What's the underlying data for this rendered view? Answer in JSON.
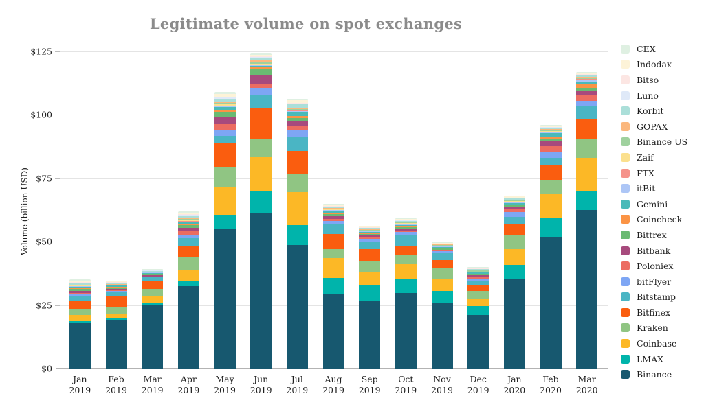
{
  "title": "Legitimate volume on spot exchanges",
  "y_axis": {
    "label": "Volume (billion USD)"
  },
  "chart_data": {
    "type": "bar",
    "stacked": true,
    "title": "Legitimate volume on spot exchanges",
    "xlabel": "",
    "ylabel": "Volume (billion USD)",
    "ylim": [
      0,
      125
    ],
    "yticks": [
      0,
      25,
      50,
      75,
      100,
      125
    ],
    "ytick_labels": [
      "$0",
      "$25",
      "$50",
      "$75",
      "$100",
      "$125"
    ],
    "grid": true,
    "legend_position": "right",
    "legend_order": "top of stack listed first (reverse of series order)",
    "categories": [
      {
        "month": "Jan",
        "year": "2019"
      },
      {
        "month": "Feb",
        "year": "2019"
      },
      {
        "month": "Mar",
        "year": "2019"
      },
      {
        "month": "Apr",
        "year": "2019"
      },
      {
        "month": "May",
        "year": "2019"
      },
      {
        "month": "Jun",
        "year": "2019"
      },
      {
        "month": "Jul",
        "year": "2019"
      },
      {
        "month": "Aug",
        "year": "2019"
      },
      {
        "month": "Sep",
        "year": "2019"
      },
      {
        "month": "Oct",
        "year": "2019"
      },
      {
        "month": "Nov",
        "year": "2019"
      },
      {
        "month": "Dec",
        "year": "2019"
      },
      {
        "month": "Jan",
        "year": "2020"
      },
      {
        "month": "Feb",
        "year": "2020"
      },
      {
        "month": "Mar",
        "year": "2020"
      }
    ],
    "series": [
      {
        "name": "Binance",
        "color": "#17586f",
        "values": [
          18.0,
          19.3,
          25.3,
          32.5,
          55.2,
          61.5,
          48.7,
          29.2,
          26.5,
          29.8,
          26.0,
          21.0,
          35.4,
          52.0,
          62.5
        ]
      },
      {
        "name": "LMAX",
        "color": "#00b4ab",
        "values": [
          0.6,
          0.4,
          0.8,
          2.2,
          5.1,
          8.7,
          7.8,
          6.5,
          6.2,
          5.7,
          4.6,
          3.5,
          5.4,
          7.3,
          7.6
        ]
      },
      {
        "name": "Coinbase",
        "color": "#fcb826",
        "values": [
          2.4,
          1.9,
          2.6,
          4.1,
          11.2,
          13.2,
          13.0,
          7.8,
          5.4,
          5.7,
          4.9,
          3.0,
          6.2,
          9.4,
          13.0
        ]
      },
      {
        "name": "Kraken",
        "color": "#90c583",
        "values": [
          2.6,
          2.8,
          2.6,
          5.1,
          8.0,
          7.3,
          7.3,
          3.5,
          4.3,
          3.8,
          4.3,
          3.0,
          5.4,
          5.7,
          7.3
        ]
      },
      {
        "name": "Bitfinex",
        "color": "#fa5d0f",
        "values": [
          3.2,
          4.2,
          3.3,
          4.5,
          9.5,
          12.2,
          9.0,
          6.0,
          4.6,
          3.5,
          3.0,
          2.4,
          4.3,
          5.7,
          7.8
        ]
      },
      {
        "name": "Bitstamp",
        "color": "#4ab5c4",
        "values": [
          1.9,
          1.7,
          1.3,
          3.0,
          2.8,
          5.0,
          5.5,
          3.8,
          3.0,
          4.0,
          2.6,
          1.4,
          3.0,
          3.0,
          5.4
        ]
      },
      {
        "name": "bitFlyer",
        "color": "#7ea6f4",
        "values": [
          0.7,
          0.4,
          0.3,
          1.1,
          2.4,
          2.8,
          3.0,
          1.5,
          1.2,
          1.4,
          0.8,
          1.1,
          1.9,
          2.2,
          1.9
        ]
      },
      {
        "name": "Poloniex",
        "color": "#ec6c61",
        "values": [
          0.5,
          0.3,
          0.2,
          1.5,
          2.3,
          1.6,
          1.6,
          0.8,
          0.6,
          0.5,
          0.3,
          0.8,
          1.5,
          2.3,
          2.4
        ]
      },
      {
        "name": "Bitbank",
        "color": "#a74a7d",
        "values": [
          0.6,
          0.5,
          0.4,
          1.4,
          2.9,
          3.6,
          1.6,
          0.9,
          0.7,
          0.7,
          0.4,
          0.5,
          0.6,
          1.9,
          1.4
        ]
      },
      {
        "name": "Bittrex",
        "color": "#6aba72",
        "values": [
          0.8,
          0.5,
          0.4,
          1.2,
          1.8,
          2.4,
          1.4,
          0.9,
          0.6,
          0.6,
          0.4,
          0.4,
          0.6,
          1.2,
          1.4
        ]
      },
      {
        "name": "Coincheck",
        "color": "#fb9445",
        "values": [
          0.4,
          0.3,
          0.2,
          0.6,
          0.7,
          0.6,
          0.8,
          0.5,
          0.3,
          0.4,
          0.3,
          0.3,
          0.4,
          0.9,
          1.2
        ]
      },
      {
        "name": "Gemini",
        "color": "#49bab9",
        "values": [
          0.5,
          0.4,
          0.3,
          0.5,
          1.2,
          0.5,
          1.4,
          0.7,
          0.5,
          0.5,
          0.4,
          0.4,
          0.6,
          1.1,
          1.2
        ]
      },
      {
        "name": "itBit",
        "color": "#adc6f6",
        "values": [
          0.2,
          0.2,
          0.1,
          0.3,
          0.4,
          0.4,
          0.4,
          0.3,
          0.2,
          0.3,
          0.2,
          0.2,
          0.3,
          0.4,
          0.5
        ]
      },
      {
        "name": "FTX",
        "color": "#f5928a",
        "values": [
          0.0,
          0.0,
          0.0,
          0.1,
          0.2,
          0.2,
          0.2,
          0.2,
          0.2,
          0.2,
          0.2,
          0.2,
          0.3,
          0.4,
          0.5
        ]
      },
      {
        "name": "Zaif",
        "color": "#fbe08e",
        "values": [
          0.3,
          0.2,
          0.1,
          0.4,
          0.5,
          0.3,
          0.3,
          0.2,
          0.2,
          0.2,
          0.1,
          0.1,
          0.2,
          0.2,
          0.2
        ]
      },
      {
        "name": "Binance US",
        "color": "#9fd19e",
        "values": [
          0.0,
          0.0,
          0.1,
          0.5,
          0.6,
          0.6,
          0.4,
          0.3,
          0.3,
          0.3,
          0.3,
          0.3,
          0.4,
          0.5,
          0.5
        ]
      },
      {
        "name": "GOPAX",
        "color": "#fbb87e",
        "values": [
          0.3,
          0.2,
          0.1,
          0.4,
          0.6,
          0.5,
          0.4,
          0.2,
          0.2,
          0.2,
          0.1,
          0.2,
          0.2,
          0.3,
          0.3
        ]
      },
      {
        "name": "Korbit",
        "color": "#abdfd9",
        "values": [
          0.5,
          0.4,
          0.3,
          0.8,
          1.0,
          0.9,
          1.4,
          0.5,
          0.4,
          0.4,
          0.3,
          0.4,
          0.4,
          0.5,
          0.5
        ]
      },
      {
        "name": "Luno",
        "color": "#dfe9f8",
        "values": [
          0.4,
          0.2,
          0.2,
          0.4,
          0.5,
          0.5,
          0.3,
          0.2,
          0.2,
          0.2,
          0.1,
          0.2,
          0.2,
          0.2,
          0.2
        ]
      },
      {
        "name": "Bitso",
        "color": "#fce6e3",
        "values": [
          0.3,
          0.2,
          0.1,
          0.3,
          0.4,
          0.3,
          0.3,
          0.2,
          0.2,
          0.2,
          0.1,
          0.2,
          0.2,
          0.2,
          0.3
        ]
      },
      {
        "name": "Indodax",
        "color": "#fdf3d8",
        "values": [
          0.5,
          0.3,
          0.3,
          0.6,
          1.0,
          0.7,
          1.4,
          0.4,
          0.3,
          0.4,
          0.2,
          0.3,
          0.4,
          0.4,
          0.4
        ]
      },
      {
        "name": "CEX",
        "color": "#dff0e2",
        "values": [
          0.4,
          0.3,
          0.3,
          0.5,
          0.8,
          0.6,
          0.3,
          0.3,
          0.3,
          0.3,
          0.2,
          0.3,
          0.3,
          0.4,
          0.4
        ]
      }
    ]
  }
}
